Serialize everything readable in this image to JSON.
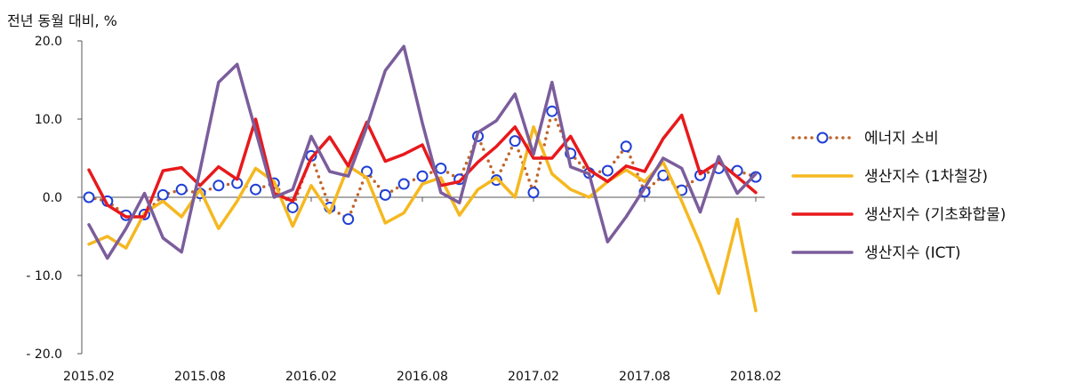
{
  "chart_data": {
    "type": "line",
    "unit_label": "전년 동월 대비, %",
    "ylim": [
      -20,
      20
    ],
    "y_ticks": [
      20,
      10,
      0,
      -10,
      -20
    ],
    "y_tick_labels": [
      "20.0",
      "10.0",
      "0.0",
      "- 10.0",
      "- 20.0"
    ],
    "x_tick_labels": [
      "2015.02",
      "2015.08",
      "2016.02",
      "2016.08",
      "2017.02",
      "2017.08",
      "2018.02"
    ],
    "x_tick_index": [
      0,
      6,
      12,
      18,
      24,
      30,
      36
    ],
    "n_points": 37,
    "legend_position": "right",
    "series": [
      {
        "name": "에너지 소비",
        "style": "dotted-circles",
        "line_color": "#c0652a",
        "marker_color": "#1f3fd6",
        "values": [
          0,
          -0.5,
          -2.3,
          -2.2,
          0.3,
          1,
          0.5,
          1.5,
          1.8,
          1,
          1.8,
          -1.3,
          5.3,
          -1.3,
          -2.8,
          3.3,
          0.3,
          1.7,
          2.7,
          3.7,
          2.3,
          7.8,
          2.2,
          7.2,
          0.6,
          11,
          5.6,
          3.1,
          3.4,
          6.5,
          0.7,
          2.8,
          0.9,
          2.8,
          3.7,
          3.4,
          2.6
        ]
      },
      {
        "name": "생산지수 (1차철강)",
        "style": "line",
        "color": "#f5b820",
        "values": [
          -6,
          -5,
          -6.5,
          -2,
          -0.5,
          -2.5,
          1,
          -4,
          -0.5,
          3.7,
          2,
          -3.7,
          1.5,
          -2,
          4,
          2.5,
          -3.3,
          -2,
          1.7,
          2.5,
          -2.3,
          1,
          2.5,
          0,
          9,
          3,
          1,
          0,
          2,
          3.5,
          2,
          4.5,
          -0.5,
          -6,
          -12.3,
          -2.8,
          -14.5
        ]
      },
      {
        "name": "생산지수 (기초화합물)",
        "style": "line",
        "color": "#e8191c",
        "values": [
          3.5,
          -1,
          -2.5,
          -2.5,
          3.4,
          3.8,
          1.5,
          3.9,
          2.3,
          10,
          0.5,
          -0.5,
          5,
          7.7,
          4,
          9.6,
          4.6,
          5.5,
          6.7,
          1.5,
          2,
          4.5,
          6.5,
          9,
          5,
          5,
          7.8,
          3.5,
          2,
          4,
          3.3,
          7.5,
          10.5,
          3,
          4.5,
          2.6,
          0.6
        ]
      },
      {
        "name": "생산지수 (ICT)",
        "style": "line",
        "color": "#7b5d9c",
        "values": [
          -3.5,
          -7.8,
          -4,
          0.5,
          -5.2,
          -7,
          3.5,
          14.7,
          17,
          8.5,
          0,
          1,
          7.8,
          3.3,
          2.7,
          9,
          16.2,
          19.3,
          9.5,
          0.6,
          -0.7,
          8.3,
          9.8,
          13.2,
          5.5,
          14.7,
          3.9,
          3,
          -5.7,
          -2.5,
          1.2,
          5,
          3.7,
          -1.9,
          5.2,
          0.5,
          3
        ]
      }
    ]
  }
}
